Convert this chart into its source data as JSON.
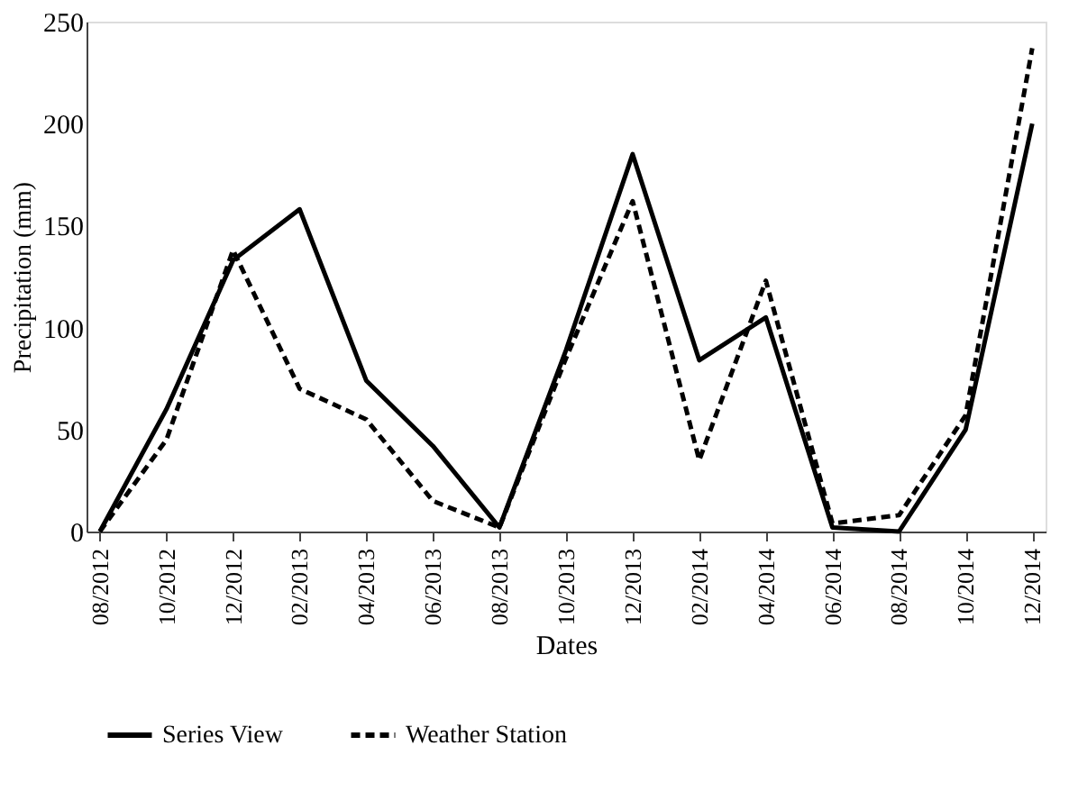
{
  "chart_data": {
    "type": "line",
    "xlabel": "Dates",
    "ylabel": "Precipitation  (mm)",
    "categories": [
      "08/2012",
      "10/2012",
      "12/2012",
      "02/2013",
      "04/2013",
      "06/2013",
      "08/2013",
      "10/2013",
      "12/2013",
      "02/2014",
      "04/2014",
      "06/2014",
      "08/2014",
      "10/2014",
      "12/2014"
    ],
    "series": [
      {
        "name": "Series View",
        "color": "#000000",
        "line_style": "solid",
        "values": [
          0,
          60,
          133,
          158,
          74,
          42,
          2,
          89,
          185,
          84,
          105,
          2,
          0,
          50,
          200
        ]
      },
      {
        "name": "Weather Station",
        "color": "#000000",
        "line_style": "dashed",
        "values": [
          0,
          45,
          138,
          70,
          55,
          15,
          2,
          85,
          162,
          35,
          123,
          4,
          8,
          57,
          237
        ]
      }
    ],
    "ylim": [
      0,
      250
    ],
    "yticks": [
      0,
      50,
      100,
      150,
      200,
      250
    ],
    "grid": false,
    "legend": "bottom",
    "marker": "none"
  }
}
